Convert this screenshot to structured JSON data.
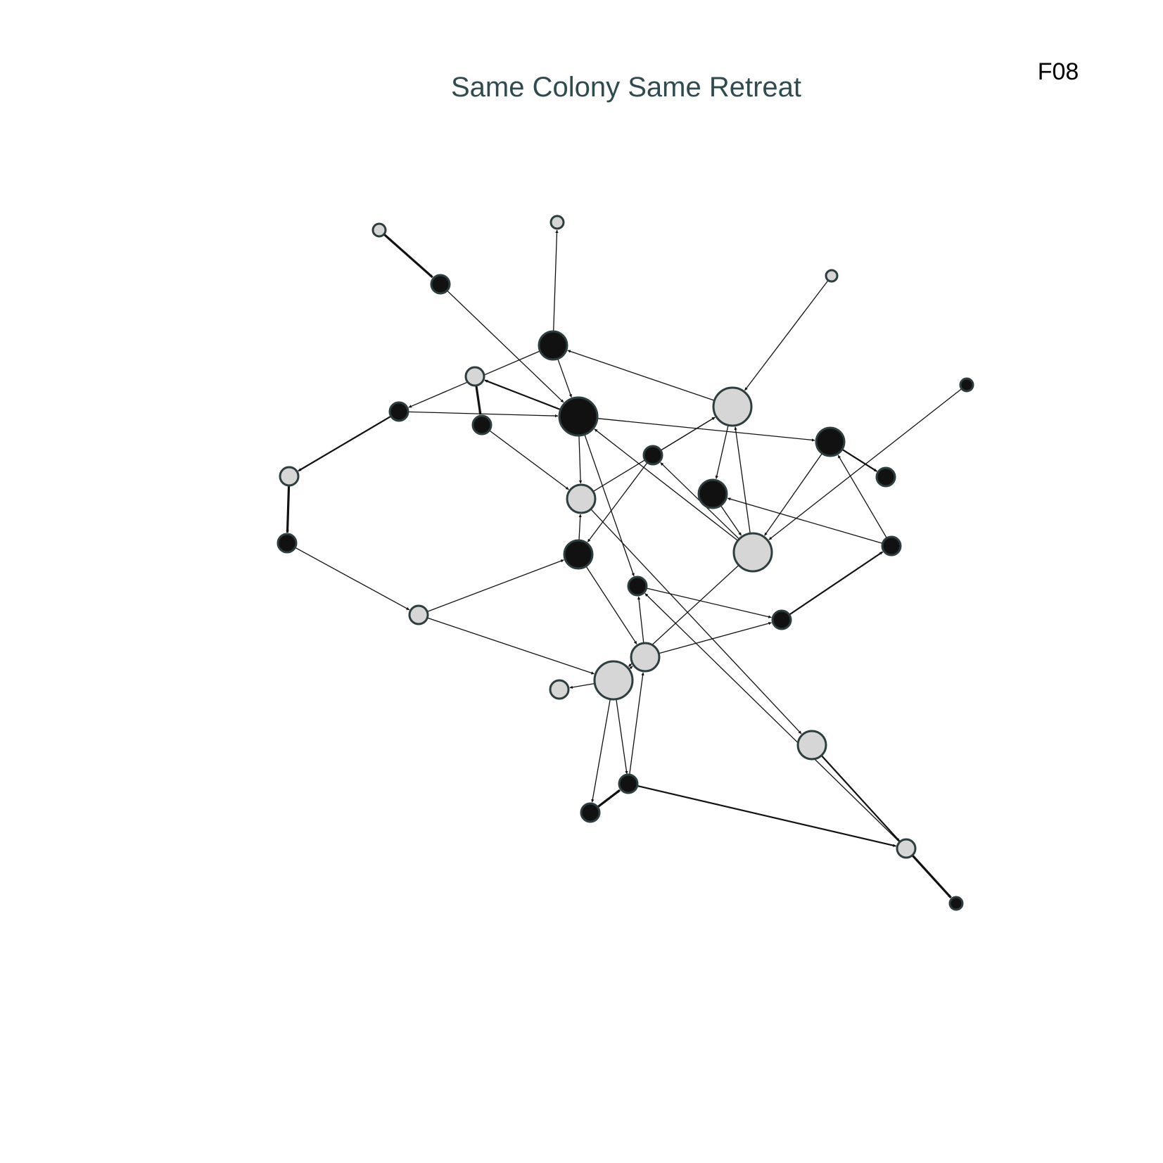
{
  "title": "Same Colony Same Retreat",
  "panel_label": "F08",
  "colors": {
    "title": "#2f4b4f",
    "label": "#000000",
    "node_dark": "#111111",
    "node_light": "#d6d6d6",
    "node_stroke": "#2c3e40",
    "edge": "#111111"
  },
  "nodes": [
    {
      "id": "n1",
      "group": "light",
      "size": "small"
    },
    {
      "id": "n2",
      "group": "dark",
      "size": "small"
    },
    {
      "id": "n3",
      "group": "light",
      "size": "small"
    },
    {
      "id": "n4",
      "group": "dark",
      "size": "medium"
    },
    {
      "id": "n5",
      "group": "light",
      "size": "small"
    },
    {
      "id": "n6",
      "group": "dark",
      "size": "large"
    },
    {
      "id": "n7",
      "group": "dark",
      "size": "small"
    },
    {
      "id": "n8",
      "group": "dark",
      "size": "small"
    },
    {
      "id": "n9",
      "group": "light",
      "size": "small"
    },
    {
      "id": "n10",
      "group": "dark",
      "size": "small"
    },
    {
      "id": "n11",
      "group": "light",
      "size": "medium"
    },
    {
      "id": "n12",
      "group": "dark",
      "size": "medium"
    },
    {
      "id": "n13",
      "group": "light",
      "size": "small"
    },
    {
      "id": "n14",
      "group": "light",
      "size": "small"
    },
    {
      "id": "n15",
      "group": "light",
      "size": "large"
    },
    {
      "id": "n16",
      "group": "dark",
      "size": "small"
    },
    {
      "id": "n17",
      "group": "dark",
      "size": "medium"
    },
    {
      "id": "n18",
      "group": "dark",
      "size": "small"
    },
    {
      "id": "n19",
      "group": "dark",
      "size": "medium"
    },
    {
      "id": "n20",
      "group": "dark",
      "size": "small"
    },
    {
      "id": "n21",
      "group": "dark",
      "size": "small"
    },
    {
      "id": "n22",
      "group": "light",
      "size": "large"
    },
    {
      "id": "n23",
      "group": "dark",
      "size": "small"
    },
    {
      "id": "n24",
      "group": "light",
      "size": "medium"
    },
    {
      "id": "n25",
      "group": "dark",
      "size": "small"
    },
    {
      "id": "n26",
      "group": "light",
      "size": "medium"
    },
    {
      "id": "n27",
      "group": "light",
      "size": "small"
    },
    {
      "id": "n28",
      "group": "light",
      "size": "large"
    },
    {
      "id": "n29",
      "group": "light",
      "size": "small"
    },
    {
      "id": "n30",
      "group": "light",
      "size": "small"
    },
    {
      "id": "n31",
      "group": "dark",
      "size": "small"
    },
    {
      "id": "n32",
      "group": "light",
      "size": "small"
    },
    {
      "id": "n33",
      "group": "dark",
      "size": "small"
    },
    {
      "id": "n34",
      "group": "dark",
      "size": "small"
    }
  ],
  "edges": [
    {
      "from": "n1",
      "to": "n2",
      "weight": "heavy"
    },
    {
      "from": "n2",
      "to": "n6",
      "weight": "thin"
    },
    {
      "from": "n4",
      "to": "n3",
      "weight": "thin"
    },
    {
      "from": "n4",
      "to": "n6",
      "weight": "thin"
    },
    {
      "from": "n4",
      "to": "n7",
      "weight": "thin"
    },
    {
      "from": "n5",
      "to": "n8",
      "weight": "heavy"
    },
    {
      "from": "n6",
      "to": "n5",
      "weight": "medium"
    },
    {
      "from": "n6",
      "to": "n11",
      "weight": "thin"
    },
    {
      "from": "n6",
      "to": "n17",
      "weight": "thin"
    },
    {
      "from": "n6",
      "to": "n23",
      "weight": "thin"
    },
    {
      "from": "n7",
      "to": "n6",
      "weight": "thin"
    },
    {
      "from": "n7",
      "to": "n9",
      "weight": "medium"
    },
    {
      "from": "n8",
      "to": "n11",
      "weight": "thin"
    },
    {
      "from": "n9",
      "to": "n10",
      "weight": "heavy"
    },
    {
      "from": "n10",
      "to": "n14",
      "weight": "thin"
    },
    {
      "from": "n11",
      "to": "n15",
      "weight": "thin"
    },
    {
      "from": "n11",
      "to": "n26",
      "weight": "thin"
    },
    {
      "from": "n12",
      "to": "n11",
      "weight": "thin"
    },
    {
      "from": "n12",
      "to": "n24",
      "weight": "thin"
    },
    {
      "from": "n13",
      "to": "n15",
      "weight": "thin"
    },
    {
      "from": "n14",
      "to": "n12",
      "weight": "thin"
    },
    {
      "from": "n14",
      "to": "n28",
      "weight": "thin"
    },
    {
      "from": "n15",
      "to": "n4",
      "weight": "thin"
    },
    {
      "from": "n15",
      "to": "n19",
      "weight": "thin"
    },
    {
      "from": "n16",
      "to": "n15",
      "weight": "thin"
    },
    {
      "from": "n16",
      "to": "n12",
      "weight": "thin"
    },
    {
      "from": "n17",
      "to": "n18",
      "weight": "medium"
    },
    {
      "from": "n17",
      "to": "n22",
      "weight": "thin"
    },
    {
      "from": "n19",
      "to": "n22",
      "weight": "thin"
    },
    {
      "from": "n20",
      "to": "n17",
      "weight": "thin"
    },
    {
      "from": "n20",
      "to": "n19",
      "weight": "thin"
    },
    {
      "from": "n21",
      "to": "n20",
      "weight": "medium"
    },
    {
      "from": "n22",
      "to": "n6",
      "weight": "thin"
    },
    {
      "from": "n22",
      "to": "n15",
      "weight": "thin"
    },
    {
      "from": "n22",
      "to": "n16",
      "weight": "thin"
    },
    {
      "from": "n22",
      "to": "n28",
      "weight": "thin"
    },
    {
      "from": "n23",
      "to": "n21",
      "weight": "thin"
    },
    {
      "from": "n24",
      "to": "n23",
      "weight": "thin"
    },
    {
      "from": "n24",
      "to": "n21",
      "weight": "thin"
    },
    {
      "from": "n25",
      "to": "n22",
      "weight": "thin"
    },
    {
      "from": "n26",
      "to": "n27",
      "weight": "medium"
    },
    {
      "from": "n27",
      "to": "n23",
      "weight": "thin"
    },
    {
      "from": "n28",
      "to": "n24",
      "weight": "thin"
    },
    {
      "from": "n28",
      "to": "n29",
      "weight": "thin"
    },
    {
      "from": "n28",
      "to": "n30",
      "weight": "thin"
    },
    {
      "from": "n28",
      "to": "n31",
      "weight": "thin"
    },
    {
      "from": "n30",
      "to": "n32",
      "weight": "medium"
    },
    {
      "from": "n31",
      "to": "n33",
      "weight": "heavy"
    },
    {
      "from": "n32",
      "to": "n34",
      "weight": "heavy"
    },
    {
      "from": "n33",
      "to": "n24",
      "weight": "thin"
    }
  ]
}
